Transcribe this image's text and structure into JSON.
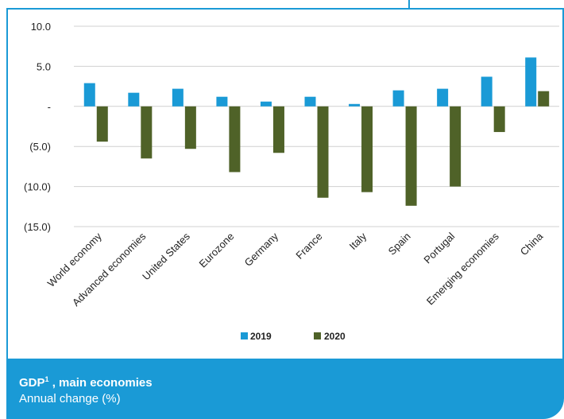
{
  "footer": {
    "title": "GDP",
    "title_sup": "1",
    "title_suffix": " , main economies",
    "subtitle": "Annual change (%)"
  },
  "colors": {
    "series_2019": "#1a9ad6",
    "series_2020": "#4f6228",
    "frame": "#1a9ad6",
    "grid": "#d0d0d0"
  },
  "chart_data": {
    "type": "bar",
    "categories": [
      "World economy",
      "Advanced economies",
      "United States",
      "Eurozone",
      "Germany",
      "France",
      "Italy",
      "Spain",
      "Portugal",
      "Emerging economies",
      "China"
    ],
    "series": [
      {
        "name": "2019",
        "values": [
          2.9,
          1.7,
          2.2,
          1.2,
          0.6,
          1.2,
          0.3,
          2.0,
          2.2,
          3.7,
          6.1
        ]
      },
      {
        "name": "2020",
        "values": [
          -4.4,
          -6.5,
          -5.3,
          -8.2,
          -5.8,
          -11.4,
          -10.7,
          -12.4,
          -10.0,
          -3.2,
          1.9
        ]
      }
    ],
    "yticks": [
      10,
      5,
      0,
      -5,
      -10,
      -15
    ],
    "ytick_labels": [
      "10.0",
      "5.0",
      "-",
      "(5.0)",
      "(10.0)",
      "(15.0)"
    ],
    "ylim": [
      -15,
      10
    ],
    "grid": true,
    "legend_position": "bottom"
  }
}
